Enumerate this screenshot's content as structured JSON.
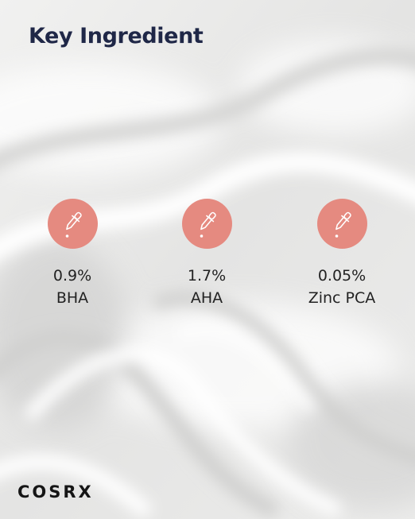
{
  "title": "Key Ingredient",
  "accent_color": "#e58a80",
  "title_color": "#1f2747",
  "ingredients": [
    {
      "icon": "dropper-icon",
      "percent": "0.9%",
      "name": "BHA"
    },
    {
      "icon": "dropper-icon",
      "percent": "1.7%",
      "name": "AHA"
    },
    {
      "icon": "dropper-icon",
      "percent": "0.05%",
      "name": "Zinc PCA"
    }
  ],
  "brand": "COSRX"
}
